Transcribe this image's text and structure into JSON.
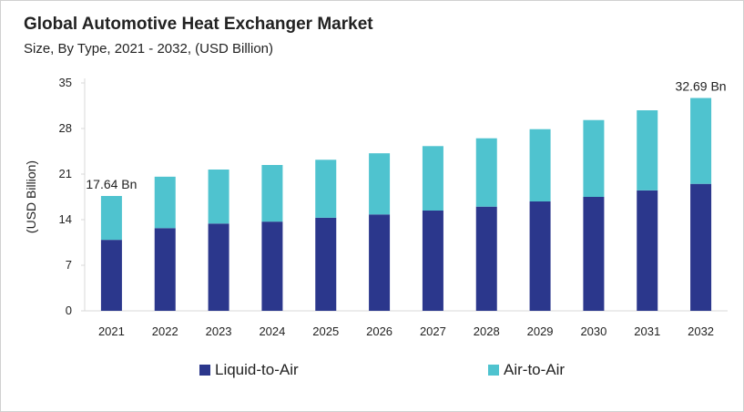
{
  "chart_data": {
    "type": "bar",
    "stacked": true,
    "title": "Global Automotive Heat Exchanger Market",
    "subtitle": "Size, By Type, 2021 - 2032, (USD Billion)",
    "xlabel": "",
    "ylabel": "(USD Billion)",
    "ylim": [
      0,
      35
    ],
    "yticks": [
      0,
      7,
      14,
      21,
      28,
      35
    ],
    "grid": false,
    "legend_position": "bottom",
    "categories": [
      "2021",
      "2022",
      "2023",
      "2024",
      "2025",
      "2026",
      "2027",
      "2028",
      "2029",
      "2030",
      "2031",
      "2032"
    ],
    "series": [
      {
        "name": "Liquid-to-Air",
        "color": "#2b378c",
        "values": [
          10.9,
          12.7,
          13.4,
          13.7,
          14.3,
          14.8,
          15.4,
          16.0,
          16.8,
          17.5,
          18.5,
          19.5
        ]
      },
      {
        "name": "Air-to-Air",
        "color": "#4fc3cf",
        "values": [
          6.74,
          7.9,
          8.3,
          8.7,
          8.9,
          9.4,
          9.9,
          10.5,
          11.1,
          11.8,
          12.3,
          13.19
        ]
      }
    ],
    "annotations": [
      {
        "category": "2021",
        "text": "17.64 Bn"
      },
      {
        "category": "2032",
        "text": "32.69 Bn"
      }
    ]
  }
}
